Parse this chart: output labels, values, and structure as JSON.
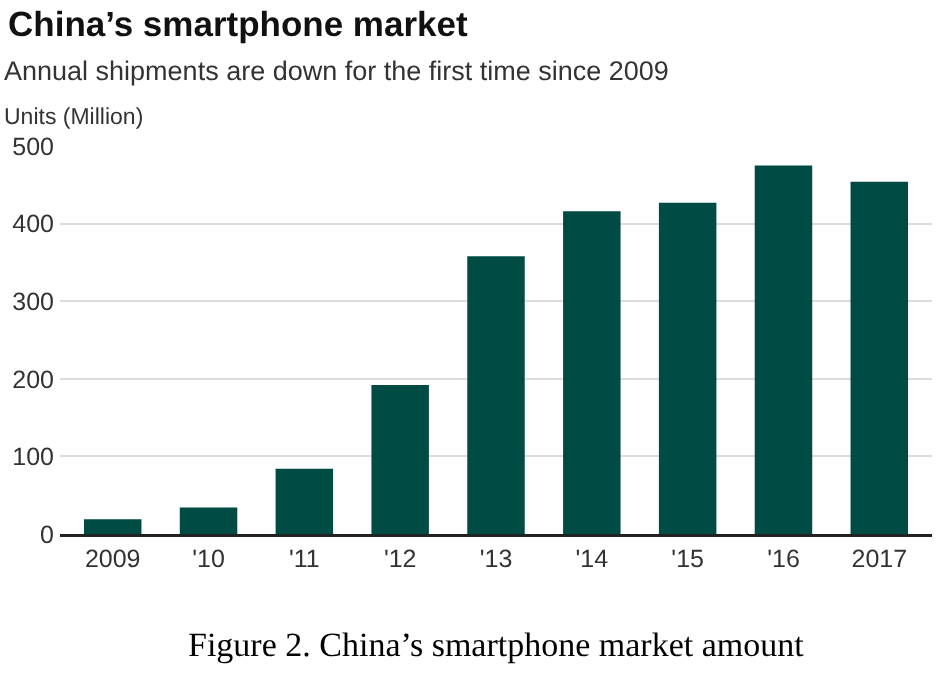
{
  "chart_data": {
    "type": "bar",
    "title": "China’s smartphone market",
    "subtitle": "Annual shipments are down for the first time since 2009",
    "ylabel": "Units (Million)",
    "categories": [
      "2009",
      "'10",
      "'11",
      "'12",
      "'13",
      "'14",
      "'15",
      "'16",
      "2017"
    ],
    "values": [
      19,
      34,
      84,
      192,
      358,
      416,
      427,
      475,
      454
    ],
    "color": "#004c45",
    "ylim": [
      0,
      500
    ],
    "yticks": [
      0,
      100,
      200,
      300,
      400,
      500
    ],
    "grid": "y",
    "annotations": [
      "Figure 2. China’s smartphone market amount"
    ]
  }
}
